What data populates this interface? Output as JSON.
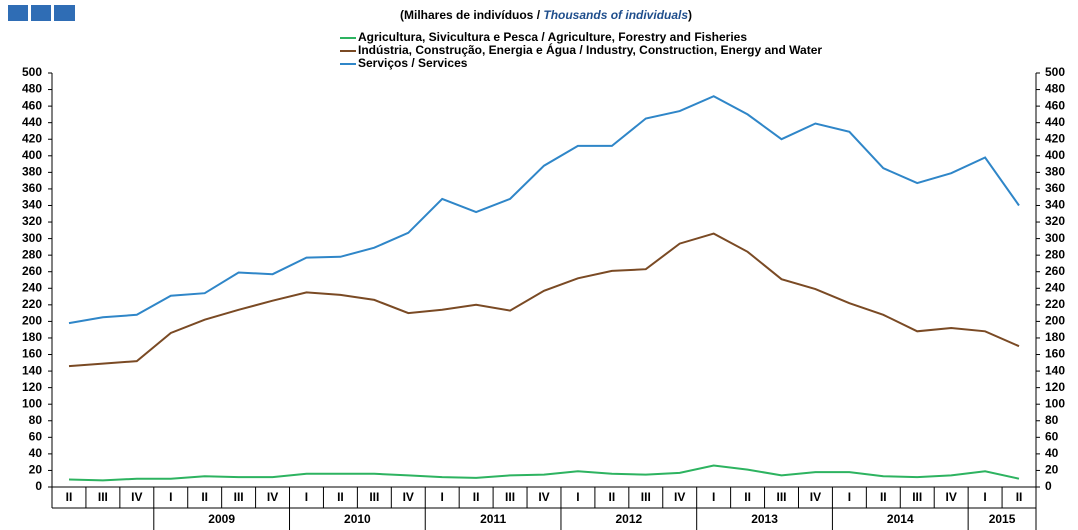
{
  "chart_data": {
    "type": "line",
    "subtitle": [
      "(Milhares de indivíduos  / ",
      "Thousands of individuals",
      ")"
    ],
    "categories": [
      "II",
      "III",
      "IV",
      "I",
      "II",
      "III",
      "IV",
      "I",
      "II",
      "III",
      "IV",
      "I",
      "II",
      "III",
      "IV",
      "I",
      "II",
      "III",
      "IV",
      "I",
      "II",
      "III",
      "IV",
      "I",
      "II",
      "III",
      "IV",
      "I",
      "II"
    ],
    "years": [
      null,
      null,
      null,
      "2009",
      "2009",
      "2009",
      "2009",
      "2010",
      "2010",
      "2010",
      "2010",
      "2011",
      "2011",
      "2011",
      "2011",
      "2012",
      "2012",
      "2012",
      "2012",
      "2013",
      "2013",
      "2013",
      "2013",
      "2014",
      "2014",
      "2014",
      "2014",
      "2015",
      "2015"
    ],
    "series": [
      {
        "name": "Agricultura, Sivicultura e Pesca / Agriculture, Forestry and Fisheries",
        "color": "#2db360",
        "values": [
          9,
          8,
          10,
          10,
          13,
          12,
          12,
          16,
          16,
          16,
          14,
          12,
          11,
          14,
          15,
          19,
          16,
          15,
          17,
          26,
          21,
          14,
          18,
          18,
          13,
          12,
          14,
          19,
          10
        ]
      },
      {
        "name": "Indústria, Construção, Energia e Água / Industry, Construction, Energy and Water",
        "color": "#7a4a24",
        "values": [
          146,
          149,
          152,
          186,
          202,
          214,
          225,
          235,
          232,
          226,
          210,
          214,
          220,
          213,
          237,
          252,
          261,
          263,
          294,
          306,
          284,
          251,
          239,
          222,
          208,
          188,
          192,
          188,
          170
        ]
      },
      {
        "name": "Serviços / Services",
        "color": "#2f86c8",
        "values": [
          198,
          205,
          208,
          231,
          234,
          259,
          257,
          277,
          278,
          289,
          307,
          348,
          332,
          348,
          388,
          412,
          412,
          445,
          454,
          472,
          450,
          420,
          439,
          429,
          385,
          367,
          379,
          398,
          340
        ]
      }
    ],
    "ylim": [
      0,
      500
    ],
    "yticks": [
      0,
      20,
      40,
      60,
      80,
      100,
      120,
      140,
      160,
      180,
      200,
      220,
      240,
      260,
      280,
      300,
      320,
      340,
      360,
      380,
      400,
      420,
      440,
      460,
      480,
      500
    ],
    "y2lim": [
      0,
      500
    ],
    "y2ticks": [
      0,
      20,
      40,
      60,
      80,
      100,
      120,
      140,
      160,
      180,
      200,
      220,
      240,
      260,
      280,
      300,
      320,
      340,
      360,
      380,
      400,
      420,
      440,
      460,
      480,
      500
    ],
    "grid": false
  }
}
